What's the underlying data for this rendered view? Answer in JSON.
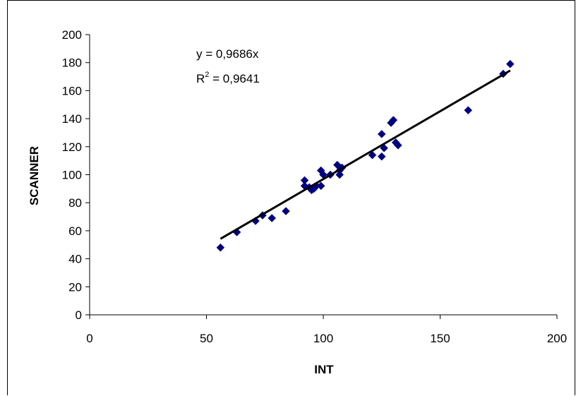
{
  "chart_data": {
    "type": "scatter",
    "title": "",
    "xlabel": "INT",
    "ylabel": "SCANNER",
    "xlim": [
      0,
      200
    ],
    "ylim": [
      0,
      200
    ],
    "xticks": [
      0,
      50,
      100,
      150,
      200
    ],
    "yticks": [
      0,
      20,
      40,
      60,
      80,
      100,
      120,
      140,
      160,
      180,
      200
    ],
    "grid": false,
    "legend": "none",
    "marker": "diamond",
    "marker_color": "#000080",
    "trendline": {
      "slope": 0.9686,
      "x_range": [
        56,
        180
      ],
      "color": "#000000"
    },
    "annotations": {
      "equation": "y = 0,9686x",
      "r2_prefix": "R",
      "r2_sup": "2",
      "r2_suffix": " = 0,9641"
    },
    "series": [
      {
        "x": [
          56,
          63,
          71,
          74,
          78,
          84,
          92,
          92,
          94,
          95,
          96,
          97,
          99,
          99,
          100,
          103,
          106,
          107,
          107,
          108,
          121,
          125,
          125,
          126,
          129,
          130,
          131,
          132,
          162,
          177,
          180
        ],
        "y": [
          48,
          59,
          67,
          71,
          69,
          74,
          96,
          92,
          91,
          89,
          90,
          92,
          103,
          92,
          100,
          100,
          107,
          100,
          103,
          105,
          114,
          113,
          129,
          119,
          137,
          139,
          123,
          121,
          146,
          172,
          179
        ]
      }
    ]
  }
}
